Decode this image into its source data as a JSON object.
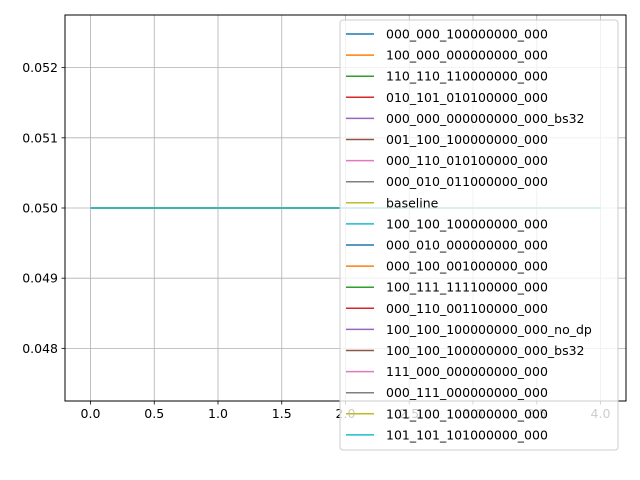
{
  "chart_data": {
    "type": "line",
    "title": "",
    "xlabel": "",
    "ylabel": "",
    "x": [
      0,
      1,
      2,
      3,
      4
    ],
    "xlim": [
      -0.2,
      4.2
    ],
    "ylim": [
      0.04725,
      0.05275
    ],
    "x_ticks": [
      "0.0",
      "0.5",
      "1.0",
      "1.5",
      "2.0",
      "2.5",
      "3.0",
      "3.5",
      "4.0"
    ],
    "y_ticks": [
      "0.048",
      "0.049",
      "0.050",
      "0.051",
      "0.052"
    ],
    "grid": true,
    "legend_position": "right",
    "series": [
      {
        "name": "000_000_100000000_000",
        "color": "#1f77b4",
        "values": [
          0.05,
          0.05,
          0.05,
          0.05,
          0.05
        ]
      },
      {
        "name": "100_000_000000000_000",
        "color": "#ff7f0e",
        "values": [
          0.05,
          0.05,
          0.05,
          0.05,
          0.05
        ]
      },
      {
        "name": "110_110_110000000_000",
        "color": "#2ca02c",
        "values": [
          0.05,
          0.05,
          0.05,
          0.05,
          0.05
        ]
      },
      {
        "name": "010_101_010100000_000",
        "color": "#d62728",
        "values": [
          0.05,
          0.05,
          0.05,
          0.05,
          0.05
        ]
      },
      {
        "name": "000_000_000000000_000_bs32",
        "color": "#9467bd",
        "values": [
          0.05,
          0.05,
          0.05,
          0.05,
          0.05
        ]
      },
      {
        "name": "001_100_100000000_000",
        "color": "#8c564b",
        "values": [
          0.05,
          0.05,
          0.05,
          0.05,
          0.05
        ]
      },
      {
        "name": "000_110_010100000_000",
        "color": "#e377c2",
        "values": [
          0.05,
          0.05,
          0.05,
          0.05,
          0.05
        ]
      },
      {
        "name": "000_010_011000000_000",
        "color": "#7f7f7f",
        "values": [
          0.05,
          0.05,
          0.05,
          0.05,
          0.05
        ]
      },
      {
        "name": "baseline",
        "color": "#bcbd22",
        "values": [
          0.05,
          0.05,
          0.05,
          0.05,
          0.05
        ]
      },
      {
        "name": "100_100_100000000_000",
        "color": "#17becf",
        "values": [
          0.05,
          0.05,
          0.05,
          0.05,
          0.05
        ]
      },
      {
        "name": "000_010_000000000_000",
        "color": "#1f77b4",
        "values": [
          0.05,
          0.05,
          0.05,
          0.05,
          0.05
        ]
      },
      {
        "name": "000_100_001000000_000",
        "color": "#ff7f0e",
        "values": [
          0.05,
          0.05,
          0.05,
          0.05,
          0.05
        ]
      },
      {
        "name": "100_111_111100000_000",
        "color": "#2ca02c",
        "values": [
          0.05,
          0.05,
          0.05,
          0.05,
          0.05
        ]
      },
      {
        "name": "000_110_001100000_000",
        "color": "#d62728",
        "values": [
          0.05,
          0.05,
          0.05,
          0.05,
          0.05
        ]
      },
      {
        "name": "100_100_100000000_000_no_dp",
        "color": "#9467bd",
        "values": [
          0.05,
          0.05,
          0.05,
          0.05,
          0.05
        ]
      },
      {
        "name": "100_100_100000000_000_bs32",
        "color": "#8c564b",
        "values": [
          0.05,
          0.05,
          0.05,
          0.05,
          0.05
        ]
      },
      {
        "name": "111_000_000000000_000",
        "color": "#e377c2",
        "values": [
          0.05,
          0.05,
          0.05,
          0.05,
          0.05
        ]
      },
      {
        "name": "000_111_000000000_000",
        "color": "#7f7f7f",
        "values": [
          0.05,
          0.05,
          0.05,
          0.05,
          0.05
        ]
      },
      {
        "name": "101_100_100000000_000",
        "color": "#bcbd22",
        "values": [
          0.05,
          0.05,
          0.05,
          0.05,
          0.05
        ]
      },
      {
        "name": "101_101_101000000_000",
        "color": "#17becf",
        "values": [
          0.05,
          0.05,
          0.05,
          0.05,
          0.05
        ]
      }
    ]
  }
}
